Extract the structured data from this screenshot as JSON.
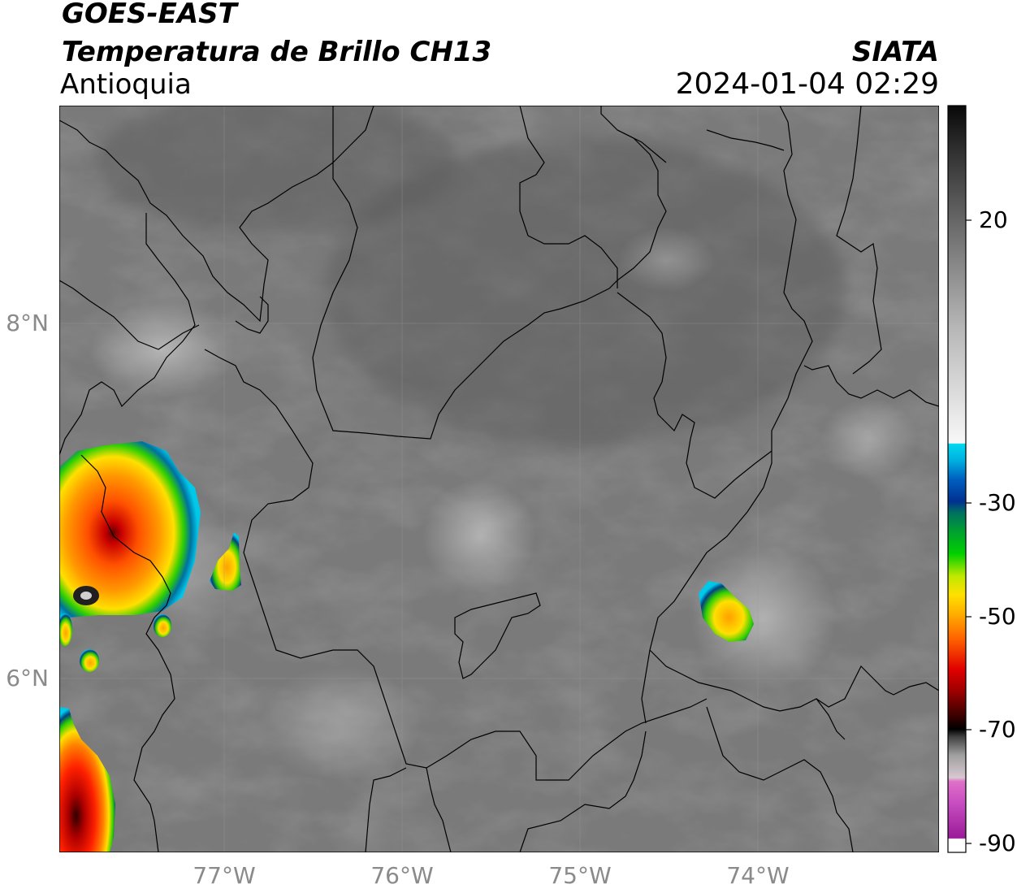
{
  "header": {
    "satellite": "GOES-EAST",
    "product": "Temperatura de Brillo CH13",
    "region": "Antioquia",
    "organization": "SIATA",
    "timestamp": "2024-01-04 02:29"
  },
  "axes": {
    "latitude_labels": [
      {
        "label": "8°N",
        "value": 8
      },
      {
        "label": "6°N",
        "value": 6
      }
    ],
    "longitude_labels": [
      {
        "label": "77°W",
        "value": -77
      },
      {
        "label": "76°W",
        "value": -76
      },
      {
        "label": "75°W",
        "value": -75
      },
      {
        "label": "74°W",
        "value": -74
      }
    ],
    "lat_range": [
      5.07,
      9.22
    ],
    "lon_range": [
      -77.93,
      -72.95
    ]
  },
  "colorbar": {
    "ticks": [
      {
        "label": "20",
        "value": 20
      },
      {
        "label": "-30",
        "value": -30
      },
      {
        "label": "-50",
        "value": -50
      },
      {
        "label": "-70",
        "value": -70
      },
      {
        "label": "-90",
        "value": -90
      }
    ],
    "range": [
      -92,
      40
    ],
    "colors": {
      "magenta": "#a020a0",
      "pink": "#e060c0",
      "black": "#000000",
      "darkred": "#8b0000",
      "red": "#e00000",
      "orange": "#ff8c00",
      "yellow": "#ffe000",
      "green": "#00c000",
      "blue": "#003090",
      "cyan": "#00d8f0",
      "gray_light": "#e8e8e8",
      "gray_dark": "#202020"
    }
  }
}
